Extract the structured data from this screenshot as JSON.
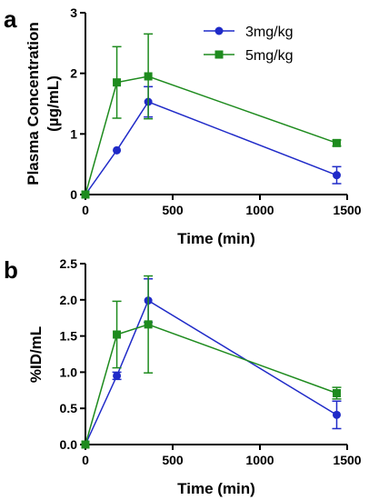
{
  "colors": {
    "series_a": "#1F2AC8",
    "series_b": "#1E8B1E"
  },
  "chart_data": [
    {
      "panel_label": "a",
      "type": "line",
      "xlabel": "Time (min)",
      "ylabel": "Plasma Concentration",
      "ylabel_line2": "(µg/mL)",
      "xlim": [
        0,
        1500
      ],
      "ylim": [
        0,
        3
      ],
      "xticks": [
        0,
        500,
        1000,
        1500
      ],
      "yticks": [
        0,
        1,
        2,
        3
      ],
      "xtick_labels": [
        "0",
        "500",
        "1000",
        "1500"
      ],
      "ytick_labels": [
        "0",
        "1",
        "2",
        "3"
      ],
      "legend_position": "top-right",
      "grid": false,
      "series": [
        {
          "name": "3mg/kg",
          "marker": "circle",
          "color": "#1F2AC8",
          "x": [
            0,
            180,
            360,
            1440
          ],
          "y": [
            0.0,
            0.73,
            1.53,
            0.32
          ],
          "err": [
            0.0,
            0.0,
            0.25,
            0.14
          ]
        },
        {
          "name": "5mg/kg",
          "marker": "square",
          "color": "#1E8B1E",
          "x": [
            0,
            180,
            360,
            1440
          ],
          "y": [
            0.0,
            1.85,
            1.95,
            0.85
          ],
          "err": [
            0.0,
            0.59,
            0.7,
            0.05
          ]
        }
      ]
    },
    {
      "panel_label": "b",
      "type": "line",
      "xlabel": "Time (min)",
      "ylabel": "%ID/mL",
      "xlim": [
        0,
        1500
      ],
      "ylim": [
        0,
        2.5
      ],
      "xticks": [
        0,
        500,
        1000,
        1500
      ],
      "yticks": [
        0,
        0.5,
        1.0,
        1.5,
        2.0,
        2.5
      ],
      "xtick_labels": [
        "0",
        "500",
        "1000",
        "1500"
      ],
      "ytick_labels": [
        "0.0",
        "0.5",
        "1.0",
        "1.5",
        "2.0",
        "2.5"
      ],
      "legend_position": "none",
      "grid": false,
      "series": [
        {
          "name": "3mg/kg",
          "marker": "circle",
          "color": "#1F2AC8",
          "x": [
            0,
            180,
            360,
            1440
          ],
          "y": [
            0.0,
            0.95,
            1.99,
            0.41
          ],
          "err": [
            0.0,
            0.05,
            0.3,
            0.19
          ]
        },
        {
          "name": "5mg/kg",
          "marker": "square",
          "color": "#1E8B1E",
          "x": [
            0,
            180,
            360,
            1440
          ],
          "y": [
            0.0,
            1.52,
            1.66,
            0.71
          ],
          "err": [
            0.0,
            0.46,
            0.67,
            0.08
          ]
        }
      ]
    }
  ]
}
